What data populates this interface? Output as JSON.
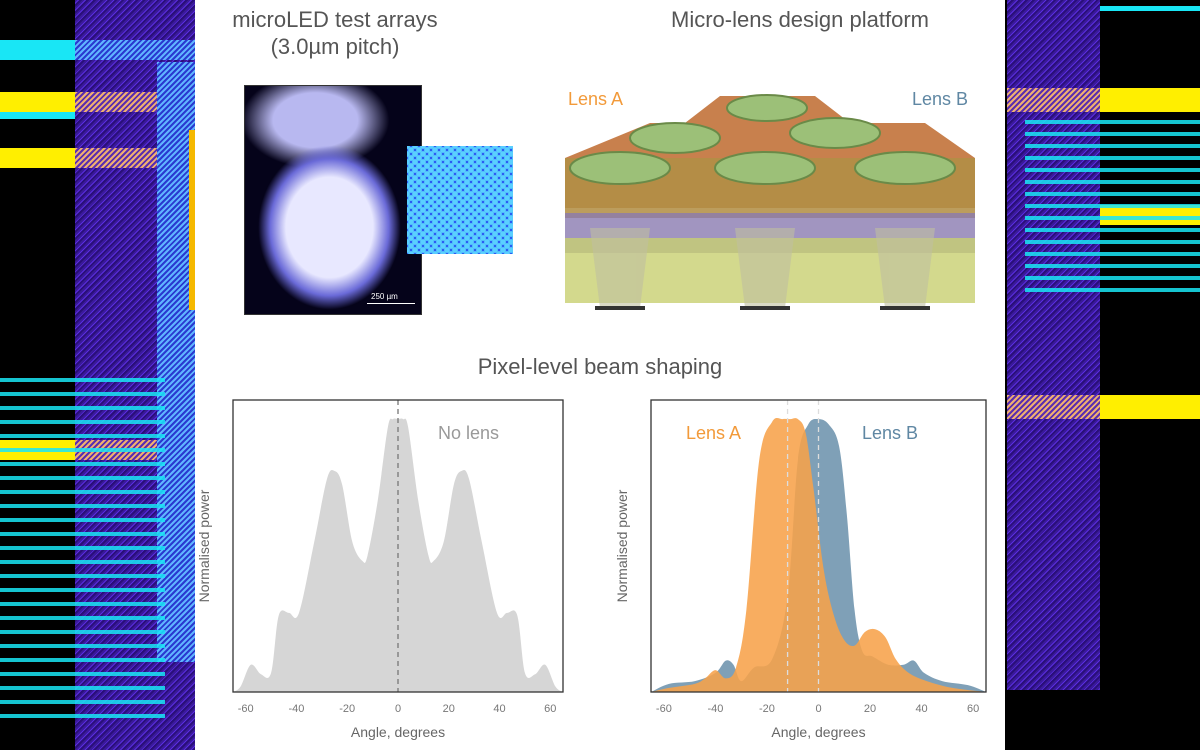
{
  "titles": {
    "microled": "microLED test arrays",
    "microled_sub": "(3.0µm pitch)",
    "microlens": "Micro-lens design platform",
    "beam": "Pixel-level beam shaping"
  },
  "scale_bar": "250 µm",
  "lens_labels": {
    "a": "Lens A",
    "b": "Lens B"
  },
  "colors": {
    "lens_a": "#f29a3a",
    "lens_b": "#5f87a3",
    "no_lens": "#d6d6d6"
  },
  "chart_data": [
    {
      "type": "area",
      "xlabel": "Angle, degrees",
      "ylabel": "Normalised power",
      "xlim": [
        -65,
        65
      ],
      "ylim": [
        0,
        1.07
      ],
      "xticks": [
        -60,
        -40,
        -20,
        0,
        20,
        40,
        60
      ],
      "reference_line_x": [
        0
      ],
      "series": [
        {
          "name": "No lens",
          "x": [
            -65,
            -62,
            -58,
            -54,
            -50,
            -47,
            -43,
            -39,
            -33,
            -28,
            -25,
            -22,
            -18,
            -14,
            -12,
            -8,
            -4,
            -2,
            0,
            2,
            4,
            8,
            12,
            14,
            18,
            22,
            25,
            28,
            33,
            39,
            43,
            47,
            50,
            54,
            58,
            62,
            65
          ],
          "y": [
            0,
            0.02,
            0.1,
            0.065,
            0.07,
            0.28,
            0.29,
            0.29,
            0.55,
            0.78,
            0.81,
            0.76,
            0.55,
            0.48,
            0.5,
            0.7,
            0.97,
            1.0,
            1.0,
            1.0,
            0.97,
            0.7,
            0.5,
            0.48,
            0.55,
            0.76,
            0.81,
            0.78,
            0.55,
            0.29,
            0.29,
            0.28,
            0.07,
            0.065,
            0.1,
            0.02,
            0
          ]
        }
      ]
    },
    {
      "type": "area",
      "xlabel": "Angle, degrees",
      "ylabel": "Normalised power",
      "xlim": [
        -65,
        65
      ],
      "ylim": [
        0,
        1.07
      ],
      "xticks": [
        -60,
        -40,
        -20,
        0,
        20,
        40,
        60
      ],
      "reference_line_x": [
        -12,
        0
      ],
      "series": [
        {
          "name": "Lens B",
          "x": [
            -65,
            -58,
            -48,
            -40,
            -36,
            -33,
            -30,
            -25,
            -18,
            -12,
            -8,
            -4,
            0,
            4,
            8,
            11,
            14,
            17,
            21,
            27,
            33,
            37,
            41,
            48,
            58,
            65
          ],
          "y": [
            0,
            0.03,
            0.04,
            0.07,
            0.115,
            0.1,
            0.04,
            0.09,
            0.12,
            0.35,
            0.85,
            0.98,
            1.0,
            0.98,
            0.9,
            0.65,
            0.3,
            0.15,
            0.13,
            0.1,
            0.1,
            0.115,
            0.07,
            0.04,
            0.025,
            0
          ]
        },
        {
          "name": "Lens A",
          "x": [
            -65,
            -58,
            -48,
            -44,
            -40,
            -36,
            -32,
            -28,
            -23,
            -18,
            -14,
            -11,
            -8,
            -5,
            -2,
            2,
            6,
            10,
            14,
            18,
            22,
            26,
            30,
            35,
            42,
            52,
            65
          ],
          "y": [
            0,
            0.015,
            0.03,
            0.05,
            0.08,
            0.05,
            0.09,
            0.3,
            0.85,
            0.99,
            1.0,
            1.0,
            1.0,
            0.95,
            0.75,
            0.45,
            0.28,
            0.19,
            0.17,
            0.22,
            0.23,
            0.2,
            0.12,
            0.07,
            0.04,
            0.015,
            0
          ]
        }
      ]
    }
  ]
}
